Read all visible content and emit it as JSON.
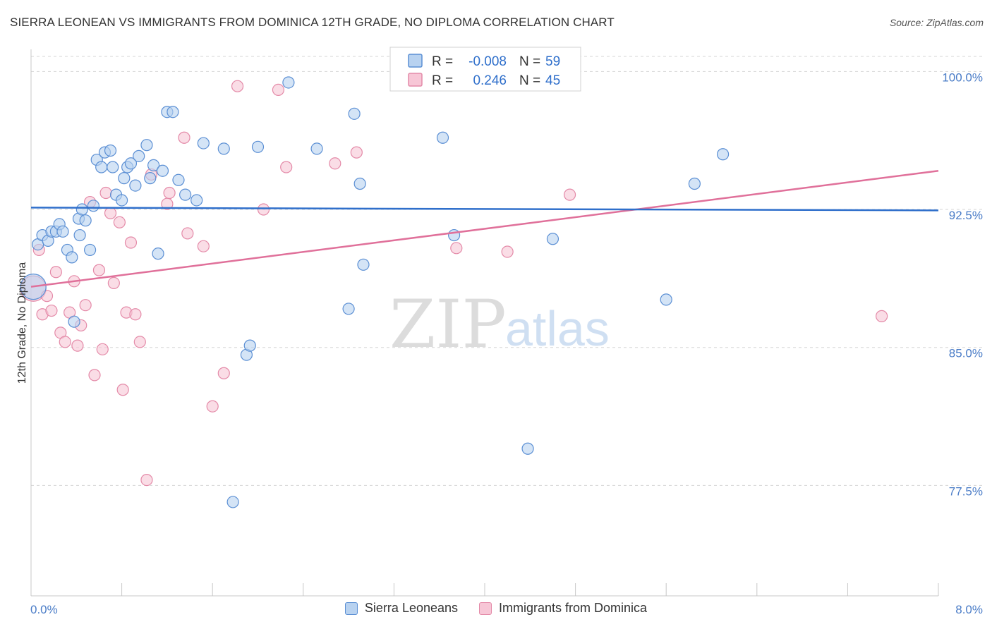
{
  "title": "SIERRA LEONEAN VS IMMIGRANTS FROM DOMINICA 12TH GRADE, NO DIPLOMA CORRELATION CHART",
  "source": "Source: ZipAtlas.com",
  "watermark": {
    "zip": "ZIP",
    "atlas": "atlas"
  },
  "colors": {
    "blue_fill": "#b8d2f0",
    "blue_stroke": "#5b8fd4",
    "blue_line": "#2f6fcb",
    "pink_fill": "#f7c6d6",
    "pink_stroke": "#e48aa8",
    "pink_line": "#e0709a",
    "grid": "#d6d6d6",
    "tick_text": "#4a7cc7"
  },
  "legend_box": {
    "rows": [
      {
        "r_label": "R =",
        "r_value": "-0.008",
        "n_label": "N =",
        "n_value": "59",
        "series": "blue"
      },
      {
        "r_label": "R =",
        "r_value": "0.246",
        "n_label": "N =",
        "n_value": "45",
        "series": "pink"
      }
    ]
  },
  "bottom_legend": [
    "Sierra Leoneans",
    "Immigrants from Dominica"
  ],
  "chart_data": {
    "type": "scatter",
    "title": "SIERRA LEONEAN VS IMMIGRANTS FROM DOMINICA 12TH GRADE, NO DIPLOMA CORRELATION CHART",
    "xlabel": "",
    "ylabel": "12th Grade, No Diploma",
    "xlim": [
      0,
      8
    ],
    "ylim": [
      71.5,
      101.2
    ],
    "x_tick_labels": [
      "0.0%",
      "8.0%"
    ],
    "y_ticks": [
      77.5,
      85.0,
      92.5,
      100.0
    ],
    "y_tick_labels": [
      "77.5%",
      "85.0%",
      "92.5%",
      "100.0%"
    ],
    "grid": true,
    "legend_position": "top-center",
    "series": [
      {
        "name": "Sierra Leoneans",
        "color": "blue",
        "r": -0.008,
        "n": 59,
        "trend": {
          "x": [
            0,
            8
          ],
          "y": [
            92.6,
            92.45
          ]
        },
        "points": [
          {
            "x": 0.02,
            "y": 88.3,
            "big": true
          },
          {
            "x": 0.06,
            "y": 90.6
          },
          {
            "x": 0.1,
            "y": 91.1
          },
          {
            "x": 0.15,
            "y": 90.8
          },
          {
            "x": 0.18,
            "y": 91.3
          },
          {
            "x": 0.22,
            "y": 91.3
          },
          {
            "x": 0.25,
            "y": 91.7
          },
          {
            "x": 0.28,
            "y": 91.3
          },
          {
            "x": 0.32,
            "y": 90.3
          },
          {
            "x": 0.36,
            "y": 89.9
          },
          {
            "x": 0.38,
            "y": 86.4
          },
          {
            "x": 0.42,
            "y": 92.0
          },
          {
            "x": 0.45,
            "y": 92.5
          },
          {
            "x": 0.48,
            "y": 91.9
          },
          {
            "x": 0.52,
            "y": 90.3
          },
          {
            "x": 0.55,
            "y": 92.7
          },
          {
            "x": 0.58,
            "y": 95.2
          },
          {
            "x": 0.62,
            "y": 94.8
          },
          {
            "x": 0.65,
            "y": 95.6
          },
          {
            "x": 0.7,
            "y": 95.7
          },
          {
            "x": 0.72,
            "y": 94.8
          },
          {
            "x": 0.75,
            "y": 93.3
          },
          {
            "x": 0.8,
            "y": 93.0
          },
          {
            "x": 0.82,
            "y": 94.2
          },
          {
            "x": 0.85,
            "y": 94.8
          },
          {
            "x": 0.88,
            "y": 95.0
          },
          {
            "x": 0.92,
            "y": 93.8
          },
          {
            "x": 0.95,
            "y": 95.4
          },
          {
            "x": 1.02,
            "y": 96.0
          },
          {
            "x": 1.05,
            "y": 94.2
          },
          {
            "x": 1.08,
            "y": 94.9
          },
          {
            "x": 1.12,
            "y": 90.1
          },
          {
            "x": 1.16,
            "y": 94.6
          },
          {
            "x": 1.2,
            "y": 97.8
          },
          {
            "x": 1.25,
            "y": 97.8
          },
          {
            "x": 1.3,
            "y": 94.1
          },
          {
            "x": 1.36,
            "y": 93.3
          },
          {
            "x": 1.46,
            "y": 93.0
          },
          {
            "x": 1.52,
            "y": 96.1
          },
          {
            "x": 1.7,
            "y": 95.8
          },
          {
            "x": 1.9,
            "y": 84.6
          },
          {
            "x": 1.93,
            "y": 85.1
          },
          {
            "x": 2.0,
            "y": 95.9
          },
          {
            "x": 2.27,
            "y": 99.4
          },
          {
            "x": 2.52,
            "y": 95.8
          },
          {
            "x": 2.8,
            "y": 87.1
          },
          {
            "x": 2.85,
            "y": 97.7
          },
          {
            "x": 2.9,
            "y": 93.9
          },
          {
            "x": 2.93,
            "y": 89.5
          },
          {
            "x": 3.63,
            "y": 96.4
          },
          {
            "x": 3.73,
            "y": 91.1
          },
          {
            "x": 4.33,
            "y": 99.4
          },
          {
            "x": 4.38,
            "y": 79.5
          },
          {
            "x": 4.6,
            "y": 90.9
          },
          {
            "x": 5.6,
            "y": 87.6
          },
          {
            "x": 5.85,
            "y": 93.9
          },
          {
            "x": 6.1,
            "y": 95.5
          },
          {
            "x": 1.78,
            "y": 76.6
          },
          {
            "x": 0.43,
            "y": 91.1
          }
        ]
      },
      {
        "name": "Immigrants from Dominica",
        "color": "pink",
        "r": 0.246,
        "n": 45,
        "trend": {
          "x": [
            0,
            8
          ],
          "y": [
            88.3,
            94.6
          ]
        },
        "points": [
          {
            "x": 0.02,
            "y": 88.2,
            "big": true
          },
          {
            "x": 0.07,
            "y": 90.3
          },
          {
            "x": 0.1,
            "y": 86.8
          },
          {
            "x": 0.14,
            "y": 87.8
          },
          {
            "x": 0.18,
            "y": 87.0
          },
          {
            "x": 0.22,
            "y": 89.1
          },
          {
            "x": 0.26,
            "y": 85.8
          },
          {
            "x": 0.3,
            "y": 85.3
          },
          {
            "x": 0.34,
            "y": 86.9
          },
          {
            "x": 0.38,
            "y": 88.6
          },
          {
            "x": 0.41,
            "y": 85.1
          },
          {
            "x": 0.44,
            "y": 86.2
          },
          {
            "x": 0.48,
            "y": 87.3
          },
          {
            "x": 0.52,
            "y": 92.9
          },
          {
            "x": 0.56,
            "y": 83.5
          },
          {
            "x": 0.6,
            "y": 89.2
          },
          {
            "x": 0.63,
            "y": 84.9
          },
          {
            "x": 0.66,
            "y": 93.4
          },
          {
            "x": 0.7,
            "y": 92.3
          },
          {
            "x": 0.73,
            "y": 88.5
          },
          {
            "x": 0.78,
            "y": 91.8
          },
          {
            "x": 0.81,
            "y": 82.7
          },
          {
            "x": 0.84,
            "y": 86.9
          },
          {
            "x": 0.88,
            "y": 90.7
          },
          {
            "x": 0.92,
            "y": 86.8
          },
          {
            "x": 0.96,
            "y": 85.3
          },
          {
            "x": 1.02,
            "y": 77.8
          },
          {
            "x": 1.06,
            "y": 94.4
          },
          {
            "x": 1.2,
            "y": 92.8
          },
          {
            "x": 1.22,
            "y": 93.4
          },
          {
            "x": 1.35,
            "y": 96.4
          },
          {
            "x": 1.38,
            "y": 91.2
          },
          {
            "x": 1.52,
            "y": 90.5
          },
          {
            "x": 1.6,
            "y": 81.8
          },
          {
            "x": 1.7,
            "y": 83.6
          },
          {
            "x": 1.82,
            "y": 99.2
          },
          {
            "x": 2.05,
            "y": 92.5
          },
          {
            "x": 2.18,
            "y": 99.0
          },
          {
            "x": 2.25,
            "y": 94.8
          },
          {
            "x": 2.68,
            "y": 95.0
          },
          {
            "x": 2.87,
            "y": 95.6
          },
          {
            "x": 3.75,
            "y": 90.4
          },
          {
            "x": 4.2,
            "y": 90.2
          },
          {
            "x": 4.75,
            "y": 93.3
          },
          {
            "x": 7.5,
            "y": 86.7
          }
        ]
      }
    ]
  }
}
